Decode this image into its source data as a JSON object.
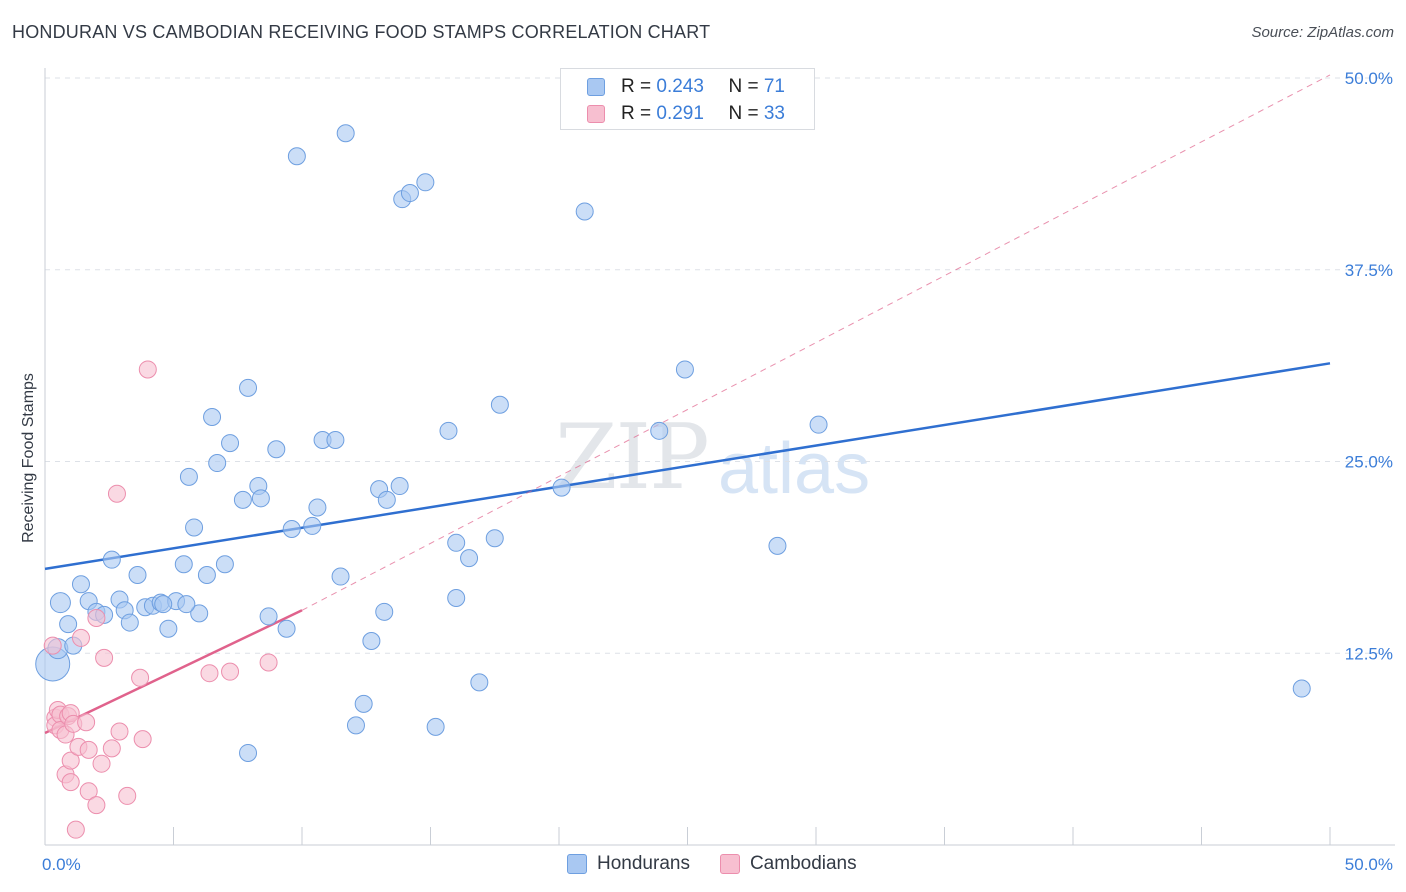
{
  "header": {
    "title": "HONDURAN VS CAMBODIAN RECEIVING FOOD STAMPS CORRELATION CHART",
    "source": "Source: ZipAtlas.com"
  },
  "watermark": {
    "part1": "ZIP",
    "part2": "atlas"
  },
  "legend": {
    "hondurans": {
      "r_label": "R = ",
      "r_value": "0.243",
      "n_label": "N = ",
      "n_value": "71"
    },
    "cambodians": {
      "r_label": "R = ",
      "r_value": "0.291",
      "n_label": "N = ",
      "n_value": "33"
    }
  },
  "bottom_legend": {
    "hondurans": "Hondurans",
    "cambodians": "Cambodians"
  },
  "colors": {
    "blue_fill": "#a9c8f2",
    "blue_stroke": "#6e9fe0",
    "blue_line": "#2f6fd0",
    "pink_fill": "#f7bfd0",
    "pink_stroke": "#ec8ead",
    "pink_line": "#e0628c",
    "grid": "#dde1e7",
    "axis_text": "#3b7dd8"
  },
  "chart_data": {
    "type": "scatter",
    "title": "HONDURAN VS CAMBODIAN RECEIVING FOOD STAMPS CORRELATION CHART",
    "xlabel": "",
    "ylabel": "Receiving Food Stamps",
    "xlim": [
      0,
      50
    ],
    "ylim": [
      0,
      50
    ],
    "x_tick_labels": [
      "0.0%",
      "50.0%"
    ],
    "y_ticks": [
      12.5,
      25.0,
      37.5,
      50.0
    ],
    "y_tick_labels": [
      "12.5%",
      "25.0%",
      "37.5%",
      "50.0%"
    ],
    "grid": true,
    "legend_placement": "top-center",
    "series": [
      {
        "name": "Hondurans",
        "points": [
          [
            0.3,
            11.8
          ],
          [
            0.5,
            12.8
          ],
          [
            0.6,
            15.8
          ],
          [
            0.9,
            14.4
          ],
          [
            1.1,
            13.0
          ],
          [
            1.4,
            17.0
          ],
          [
            1.7,
            15.9
          ],
          [
            2.0,
            15.2
          ],
          [
            2.3,
            15.0
          ],
          [
            2.6,
            18.6
          ],
          [
            2.9,
            16.0
          ],
          [
            3.1,
            15.3
          ],
          [
            3.3,
            14.5
          ],
          [
            3.6,
            17.6
          ],
          [
            3.9,
            15.5
          ],
          [
            4.2,
            15.6
          ],
          [
            4.5,
            15.8
          ],
          [
            4.8,
            14.1
          ],
          [
            5.1,
            15.9
          ],
          [
            5.4,
            18.3
          ],
          [
            5.6,
            24.0
          ],
          [
            5.8,
            20.7
          ],
          [
            6.0,
            15.1
          ],
          [
            6.3,
            17.6
          ],
          [
            6.5,
            27.9
          ],
          [
            6.7,
            24.9
          ],
          [
            7.0,
            18.3
          ],
          [
            7.2,
            26.2
          ],
          [
            7.7,
            22.5
          ],
          [
            7.9,
            6.0
          ],
          [
            7.9,
            29.8
          ],
          [
            8.3,
            23.4
          ],
          [
            8.4,
            22.6
          ],
          [
            8.7,
            14.9
          ],
          [
            9.0,
            25.8
          ],
          [
            9.4,
            14.1
          ],
          [
            9.6,
            20.6
          ],
          [
            9.8,
            44.9
          ],
          [
            10.4,
            20.8
          ],
          [
            10.6,
            22.0
          ],
          [
            10.8,
            26.4
          ],
          [
            11.3,
            26.4
          ],
          [
            11.5,
            17.5
          ],
          [
            11.7,
            46.4
          ],
          [
            12.1,
            7.8
          ],
          [
            12.4,
            9.2
          ],
          [
            12.7,
            13.3
          ],
          [
            13.0,
            23.2
          ],
          [
            13.2,
            15.2
          ],
          [
            13.3,
            22.5
          ],
          [
            13.8,
            23.4
          ],
          [
            13.9,
            42.1
          ],
          [
            14.2,
            42.5
          ],
          [
            14.8,
            43.2
          ],
          [
            15.2,
            7.7
          ],
          [
            15.7,
            27.0
          ],
          [
            16.0,
            19.7
          ],
          [
            16.0,
            16.1
          ],
          [
            16.5,
            18.7
          ],
          [
            16.9,
            10.6
          ],
          [
            17.5,
            20.0
          ],
          [
            17.7,
            28.7
          ],
          [
            20.1,
            23.3
          ],
          [
            21.0,
            41.3
          ],
          [
            23.9,
            27.0
          ],
          [
            24.9,
            31.0
          ],
          [
            28.5,
            19.5
          ],
          [
            30.1,
            27.4
          ],
          [
            48.9,
            10.2
          ],
          [
            5.5,
            15.7
          ],
          [
            4.6,
            15.7
          ]
        ]
      },
      {
        "name": "Cambodians",
        "points": [
          [
            0.3,
            13.0
          ],
          [
            0.4,
            8.3
          ],
          [
            0.4,
            7.8
          ],
          [
            0.5,
            8.8
          ],
          [
            0.6,
            8.5
          ],
          [
            0.6,
            7.5
          ],
          [
            0.8,
            7.2
          ],
          [
            0.8,
            4.6
          ],
          [
            0.9,
            8.4
          ],
          [
            1.0,
            5.5
          ],
          [
            1.0,
            8.6
          ],
          [
            1.0,
            4.1
          ],
          [
            1.1,
            7.9
          ],
          [
            1.2,
            1.0
          ],
          [
            1.3,
            6.4
          ],
          [
            1.4,
            13.5
          ],
          [
            1.6,
            8.0
          ],
          [
            1.7,
            3.5
          ],
          [
            1.7,
            6.2
          ],
          [
            2.0,
            2.6
          ],
          [
            2.0,
            14.8
          ],
          [
            2.2,
            5.3
          ],
          [
            2.3,
            12.2
          ],
          [
            2.6,
            6.3
          ],
          [
            2.8,
            22.9
          ],
          [
            2.9,
            7.4
          ],
          [
            3.2,
            3.2
          ],
          [
            3.7,
            10.9
          ],
          [
            3.8,
            6.9
          ],
          [
            4.0,
            31.0
          ],
          [
            6.4,
            11.2
          ],
          [
            7.2,
            11.3
          ],
          [
            8.7,
            11.9
          ]
        ]
      }
    ],
    "trendlines": [
      {
        "series": "Hondurans",
        "style": "solid",
        "from": [
          0,
          18.0
        ],
        "to": [
          50,
          31.4
        ]
      },
      {
        "series": "Cambodians",
        "style": "solid",
        "from": [
          0,
          7.3
        ],
        "to": [
          10,
          15.3
        ]
      },
      {
        "series": "Cambodians",
        "style": "dashed",
        "from": [
          10,
          15.3
        ],
        "to": [
          50,
          50.2
        ]
      }
    ]
  }
}
